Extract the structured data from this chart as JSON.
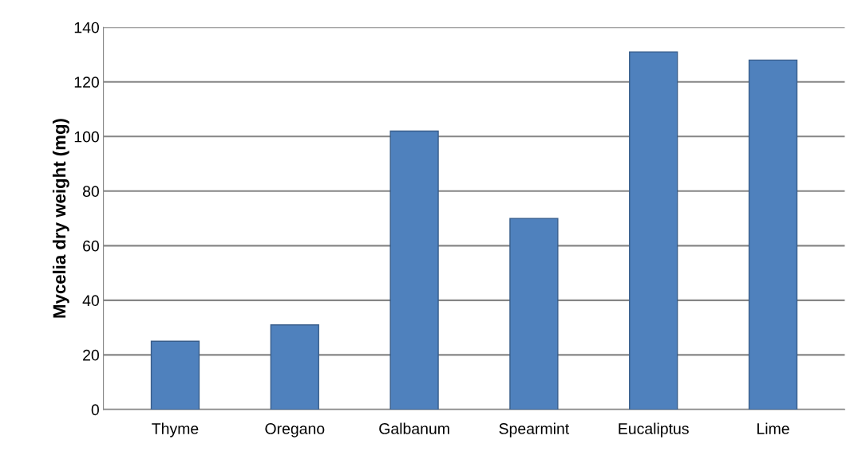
{
  "chart_data": {
    "type": "bar",
    "ylabel": "Mycelia dry weight (mg)",
    "categories": [
      "Thyme",
      "Oregano",
      "Galbanum",
      "Spearmint",
      "Eucaliptus",
      "Lime"
    ],
    "values": [
      25,
      31,
      102,
      70,
      131,
      128
    ],
    "color": "#4f81bd",
    "ylim": [
      0,
      140
    ],
    "yticks": [
      0,
      20,
      40,
      60,
      80,
      100,
      120,
      140
    ],
    "grid": "y"
  }
}
